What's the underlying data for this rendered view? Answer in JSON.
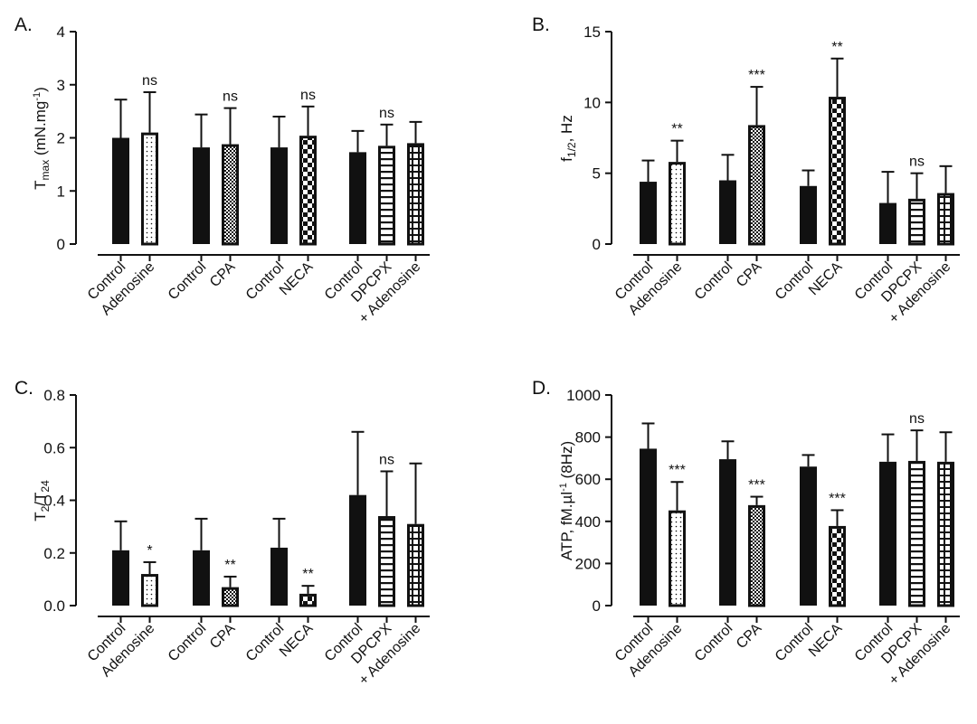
{
  "chart_data": [
    {
      "type": "bar",
      "panel": "A.",
      "ylabel_main": "T",
      "ylabel_sub": "max",
      "ylabel_rest": " (mN.mg",
      "ylabel_sup": "-1",
      "ylabel_end": ")",
      "ylim": [
        0,
        4
      ],
      "yticks": [
        0,
        1,
        2,
        3,
        4
      ],
      "tick_labels": [
        "0",
        "1",
        "2",
        "3",
        "4"
      ],
      "groups": [
        {
          "bars": [
            {
              "label": "Control",
              "pattern": "solid",
              "value": 2.0,
              "error": 0.72,
              "sig": ""
            },
            {
              "label": "Adenosine",
              "pattern": "dots",
              "value": 2.1,
              "error": 0.76,
              "sig": "ns"
            }
          ]
        },
        {
          "bars": [
            {
              "label": "Control",
              "pattern": "solid",
              "value": 1.82,
              "error": 0.62,
              "sig": ""
            },
            {
              "label": "CPA",
              "pattern": "fine-check",
              "value": 1.88,
              "error": 0.68,
              "sig": "ns"
            }
          ]
        },
        {
          "bars": [
            {
              "label": "Control",
              "pattern": "solid",
              "value": 1.82,
              "error": 0.58,
              "sig": ""
            },
            {
              "label": "NECA",
              "pattern": "checker",
              "value": 2.04,
              "error": 0.55,
              "sig": "ns"
            }
          ]
        },
        {
          "bars": [
            {
              "label": "Control",
              "pattern": "solid",
              "value": 1.73,
              "error": 0.4,
              "sig": ""
            },
            {
              "label": "DPCPX",
              "pattern": "hlines",
              "value": 1.85,
              "error": 0.4,
              "sig": "ns"
            },
            {
              "label": "+ Adenosine",
              "pattern": "grid",
              "value": 1.9,
              "error": 0.4,
              "sig": ""
            }
          ]
        }
      ]
    },
    {
      "type": "bar",
      "panel": "B.",
      "ylabel_main": "f",
      "ylabel_sub": "1/2",
      "ylabel_rest": ", Hz",
      "ylabel_sup": "",
      "ylabel_end": "",
      "ylim": [
        0,
        15
      ],
      "yticks": [
        0,
        5,
        10,
        15
      ],
      "tick_labels": [
        "0",
        "5",
        "10",
        "15"
      ],
      "groups": [
        {
          "bars": [
            {
              "label": "Control",
              "pattern": "solid",
              "value": 4.4,
              "error": 1.5,
              "sig": ""
            },
            {
              "label": "Adenosine",
              "pattern": "dots",
              "value": 5.8,
              "error": 1.5,
              "sig": "**"
            }
          ]
        },
        {
          "bars": [
            {
              "label": "Control",
              "pattern": "solid",
              "value": 4.5,
              "error": 1.8,
              "sig": ""
            },
            {
              "label": "CPA",
              "pattern": "fine-check",
              "value": 8.4,
              "error": 2.7,
              "sig": "***"
            }
          ]
        },
        {
          "bars": [
            {
              "label": "Control",
              "pattern": "solid",
              "value": 4.1,
              "error": 1.1,
              "sig": ""
            },
            {
              "label": "NECA",
              "pattern": "checker",
              "value": 10.4,
              "error": 2.7,
              "sig": "**"
            }
          ]
        },
        {
          "bars": [
            {
              "label": "Control",
              "pattern": "solid",
              "value": 2.9,
              "error": 2.2,
              "sig": ""
            },
            {
              "label": "DPCPX",
              "pattern": "hlines",
              "value": 3.2,
              "error": 1.8,
              "sig": "ns"
            },
            {
              "label": "+ Adenosine",
              "pattern": "grid",
              "value": 3.6,
              "error": 1.9,
              "sig": ""
            }
          ]
        }
      ]
    },
    {
      "type": "bar",
      "panel": "C.",
      "ylabel_main": "T",
      "ylabel_sub": "2",
      "ylabel_rest": "/T",
      "ylabel_sup": "",
      "ylabel_end": "",
      "ylabel_sub2": "24",
      "ylim": [
        0,
        0.8
      ],
      "yticks": [
        0,
        0.2,
        0.4,
        0.6,
        0.8
      ],
      "tick_labels": [
        "0.0",
        "0.2",
        "0.4",
        "0.6",
        "0.8"
      ],
      "groups": [
        {
          "bars": [
            {
              "label": "Control",
              "pattern": "solid",
              "value": 0.21,
              "error": 0.11,
              "sig": ""
            },
            {
              "label": "Adenosine",
              "pattern": "dots",
              "value": 0.12,
              "error": 0.045,
              "sig": "*"
            }
          ]
        },
        {
          "bars": [
            {
              "label": "Control",
              "pattern": "solid",
              "value": 0.21,
              "error": 0.12,
              "sig": ""
            },
            {
              "label": "CPA",
              "pattern": "fine-check",
              "value": 0.07,
              "error": 0.04,
              "sig": "**"
            }
          ]
        },
        {
          "bars": [
            {
              "label": "Control",
              "pattern": "solid",
              "value": 0.22,
              "error": 0.11,
              "sig": ""
            },
            {
              "label": "NECA",
              "pattern": "checker",
              "value": 0.045,
              "error": 0.03,
              "sig": "**"
            }
          ]
        },
        {
          "bars": [
            {
              "label": "Control",
              "pattern": "solid",
              "value": 0.42,
              "error": 0.24,
              "sig": ""
            },
            {
              "label": "DPCPX",
              "pattern": "hlines",
              "value": 0.34,
              "error": 0.17,
              "sig": "ns"
            },
            {
              "label": "+ Adenosine",
              "pattern": "grid",
              "value": 0.31,
              "error": 0.23,
              "sig": ""
            }
          ]
        }
      ]
    },
    {
      "type": "bar",
      "panel": "D.",
      "ylabel_main": "ATP, fM.µl",
      "ylabel_sub": "",
      "ylabel_rest": "",
      "ylabel_sup": "-1",
      "ylabel_end": " (8Hz)",
      "ylim": [
        0,
        1000
      ],
      "yticks": [
        0,
        200,
        400,
        600,
        800,
        1000
      ],
      "tick_labels": [
        "0",
        "200",
        "400",
        "600",
        "800",
        "1000"
      ],
      "groups": [
        {
          "bars": [
            {
              "label": "Control",
              "pattern": "solid",
              "value": 745,
              "error": 120,
              "sig": ""
            },
            {
              "label": "Adenosine",
              "pattern": "dots",
              "value": 452,
              "error": 135,
              "sig": "***"
            }
          ]
        },
        {
          "bars": [
            {
              "label": "Control",
              "pattern": "solid",
              "value": 695,
              "error": 85,
              "sig": ""
            },
            {
              "label": "CPA",
              "pattern": "fine-check",
              "value": 477,
              "error": 40,
              "sig": "***"
            }
          ]
        },
        {
          "bars": [
            {
              "label": "Control",
              "pattern": "solid",
              "value": 660,
              "error": 55,
              "sig": ""
            },
            {
              "label": "NECA",
              "pattern": "checker",
              "value": 378,
              "error": 75,
              "sig": "***"
            }
          ]
        },
        {
          "bars": [
            {
              "label": "Control",
              "pattern": "solid",
              "value": 683,
              "error": 130,
              "sig": ""
            },
            {
              "label": "DPCPX",
              "pattern": "hlines",
              "value": 687,
              "error": 145,
              "sig": "ns"
            },
            {
              "label": "+ Adenosine",
              "pattern": "grid",
              "value": 683,
              "error": 140,
              "sig": ""
            }
          ]
        }
      ]
    }
  ]
}
